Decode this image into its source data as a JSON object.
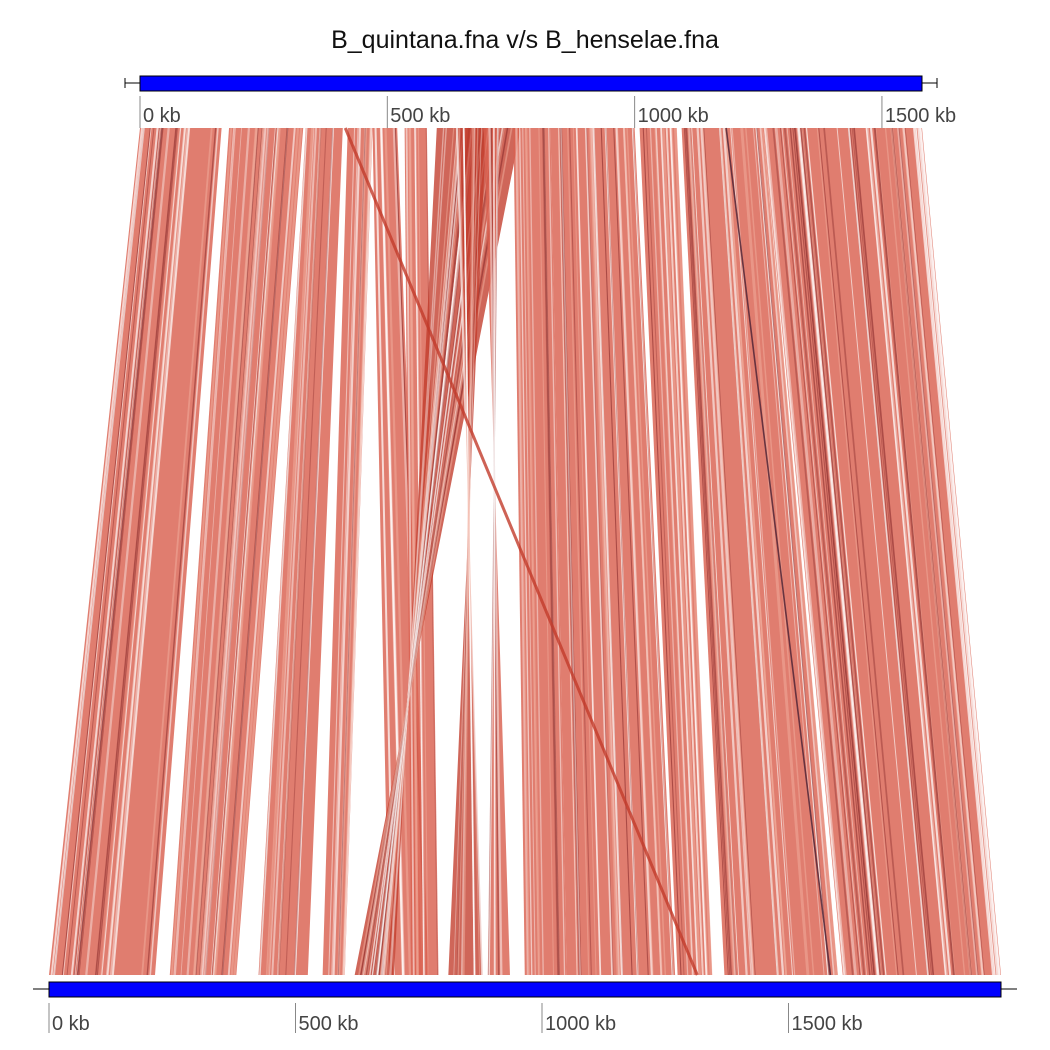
{
  "title": "B_quintana.fna v/s B_henselae.fna",
  "colors": {
    "genome_bar": "#0000ff",
    "match_fill": "#d9604f",
    "match_dark": "#8b2d2d",
    "inversion": "#c23b2a",
    "sequence_dark_line": "#5a2a3a"
  },
  "top_genome": {
    "name": "B_quintana.fna",
    "length_kb": 1581,
    "ticks": [
      {
        "value": 0,
        "label": "0 kb"
      },
      {
        "value": 500,
        "label": "500 kb"
      },
      {
        "value": 1000,
        "label": "1000 kb"
      },
      {
        "value": 1500,
        "label": "1500 kb"
      }
    ]
  },
  "bottom_genome": {
    "name": "B_henselae.fna",
    "length_kb": 1931,
    "ticks": [
      {
        "value": 0,
        "label": "0 kb"
      },
      {
        "value": 500,
        "label": "500 kb"
      },
      {
        "value": 1000,
        "label": "1000 kb"
      },
      {
        "value": 1500,
        "label": "1500 kb"
      }
    ]
  },
  "alignment_blocks": [
    {
      "top": [
        0,
        165
      ],
      "bottom": [
        0,
        215
      ],
      "dir": "+"
    },
    {
      "top": [
        180,
        330
      ],
      "bottom": [
        245,
        380
      ],
      "dir": "+"
    },
    {
      "top": [
        335,
        410
      ],
      "bottom": [
        425,
        525
      ],
      "dir": "+"
    },
    {
      "top": [
        420,
        470
      ],
      "bottom": [
        555,
        600
      ],
      "dir": "+"
    },
    {
      "top": [
        470,
        520
      ],
      "bottom": [
        690,
        770
      ],
      "dir": "+"
    },
    {
      "top": [
        535,
        580
      ],
      "bottom": [
        735,
        790
      ],
      "dir": "+"
    },
    {
      "top": [
        600,
        770
      ],
      "bottom": [
        700,
        620
      ],
      "dir": "-"
    },
    {
      "top": [
        640,
        700
      ],
      "bottom": [
        880,
        810
      ],
      "dir": "-"
    },
    {
      "top": [
        695,
        725
      ],
      "bottom": [
        935,
        890
      ],
      "dir": "+"
    },
    {
      "top": [
        755,
        830
      ],
      "bottom": [
        965,
        1050
      ],
      "dir": "+"
    },
    {
      "top": [
        830,
        1000
      ],
      "bottom": [
        1050,
        1270
      ],
      "dir": "+"
    },
    {
      "top": [
        1010,
        1085
      ],
      "bottom": [
        1275,
        1345
      ],
      "dir": "+"
    },
    {
      "top": [
        1095,
        1260
      ],
      "bottom": [
        1370,
        1600
      ],
      "dir": "+"
    },
    {
      "top": [
        1260,
        1581
      ],
      "bottom": [
        1610,
        1931
      ],
      "dir": "+"
    }
  ],
  "single_matches": [
    {
      "top": 415,
      "bottom": 1315,
      "style": "inversion"
    },
    {
      "top": 1185,
      "bottom": 1585,
      "style": "dark"
    }
  ]
}
